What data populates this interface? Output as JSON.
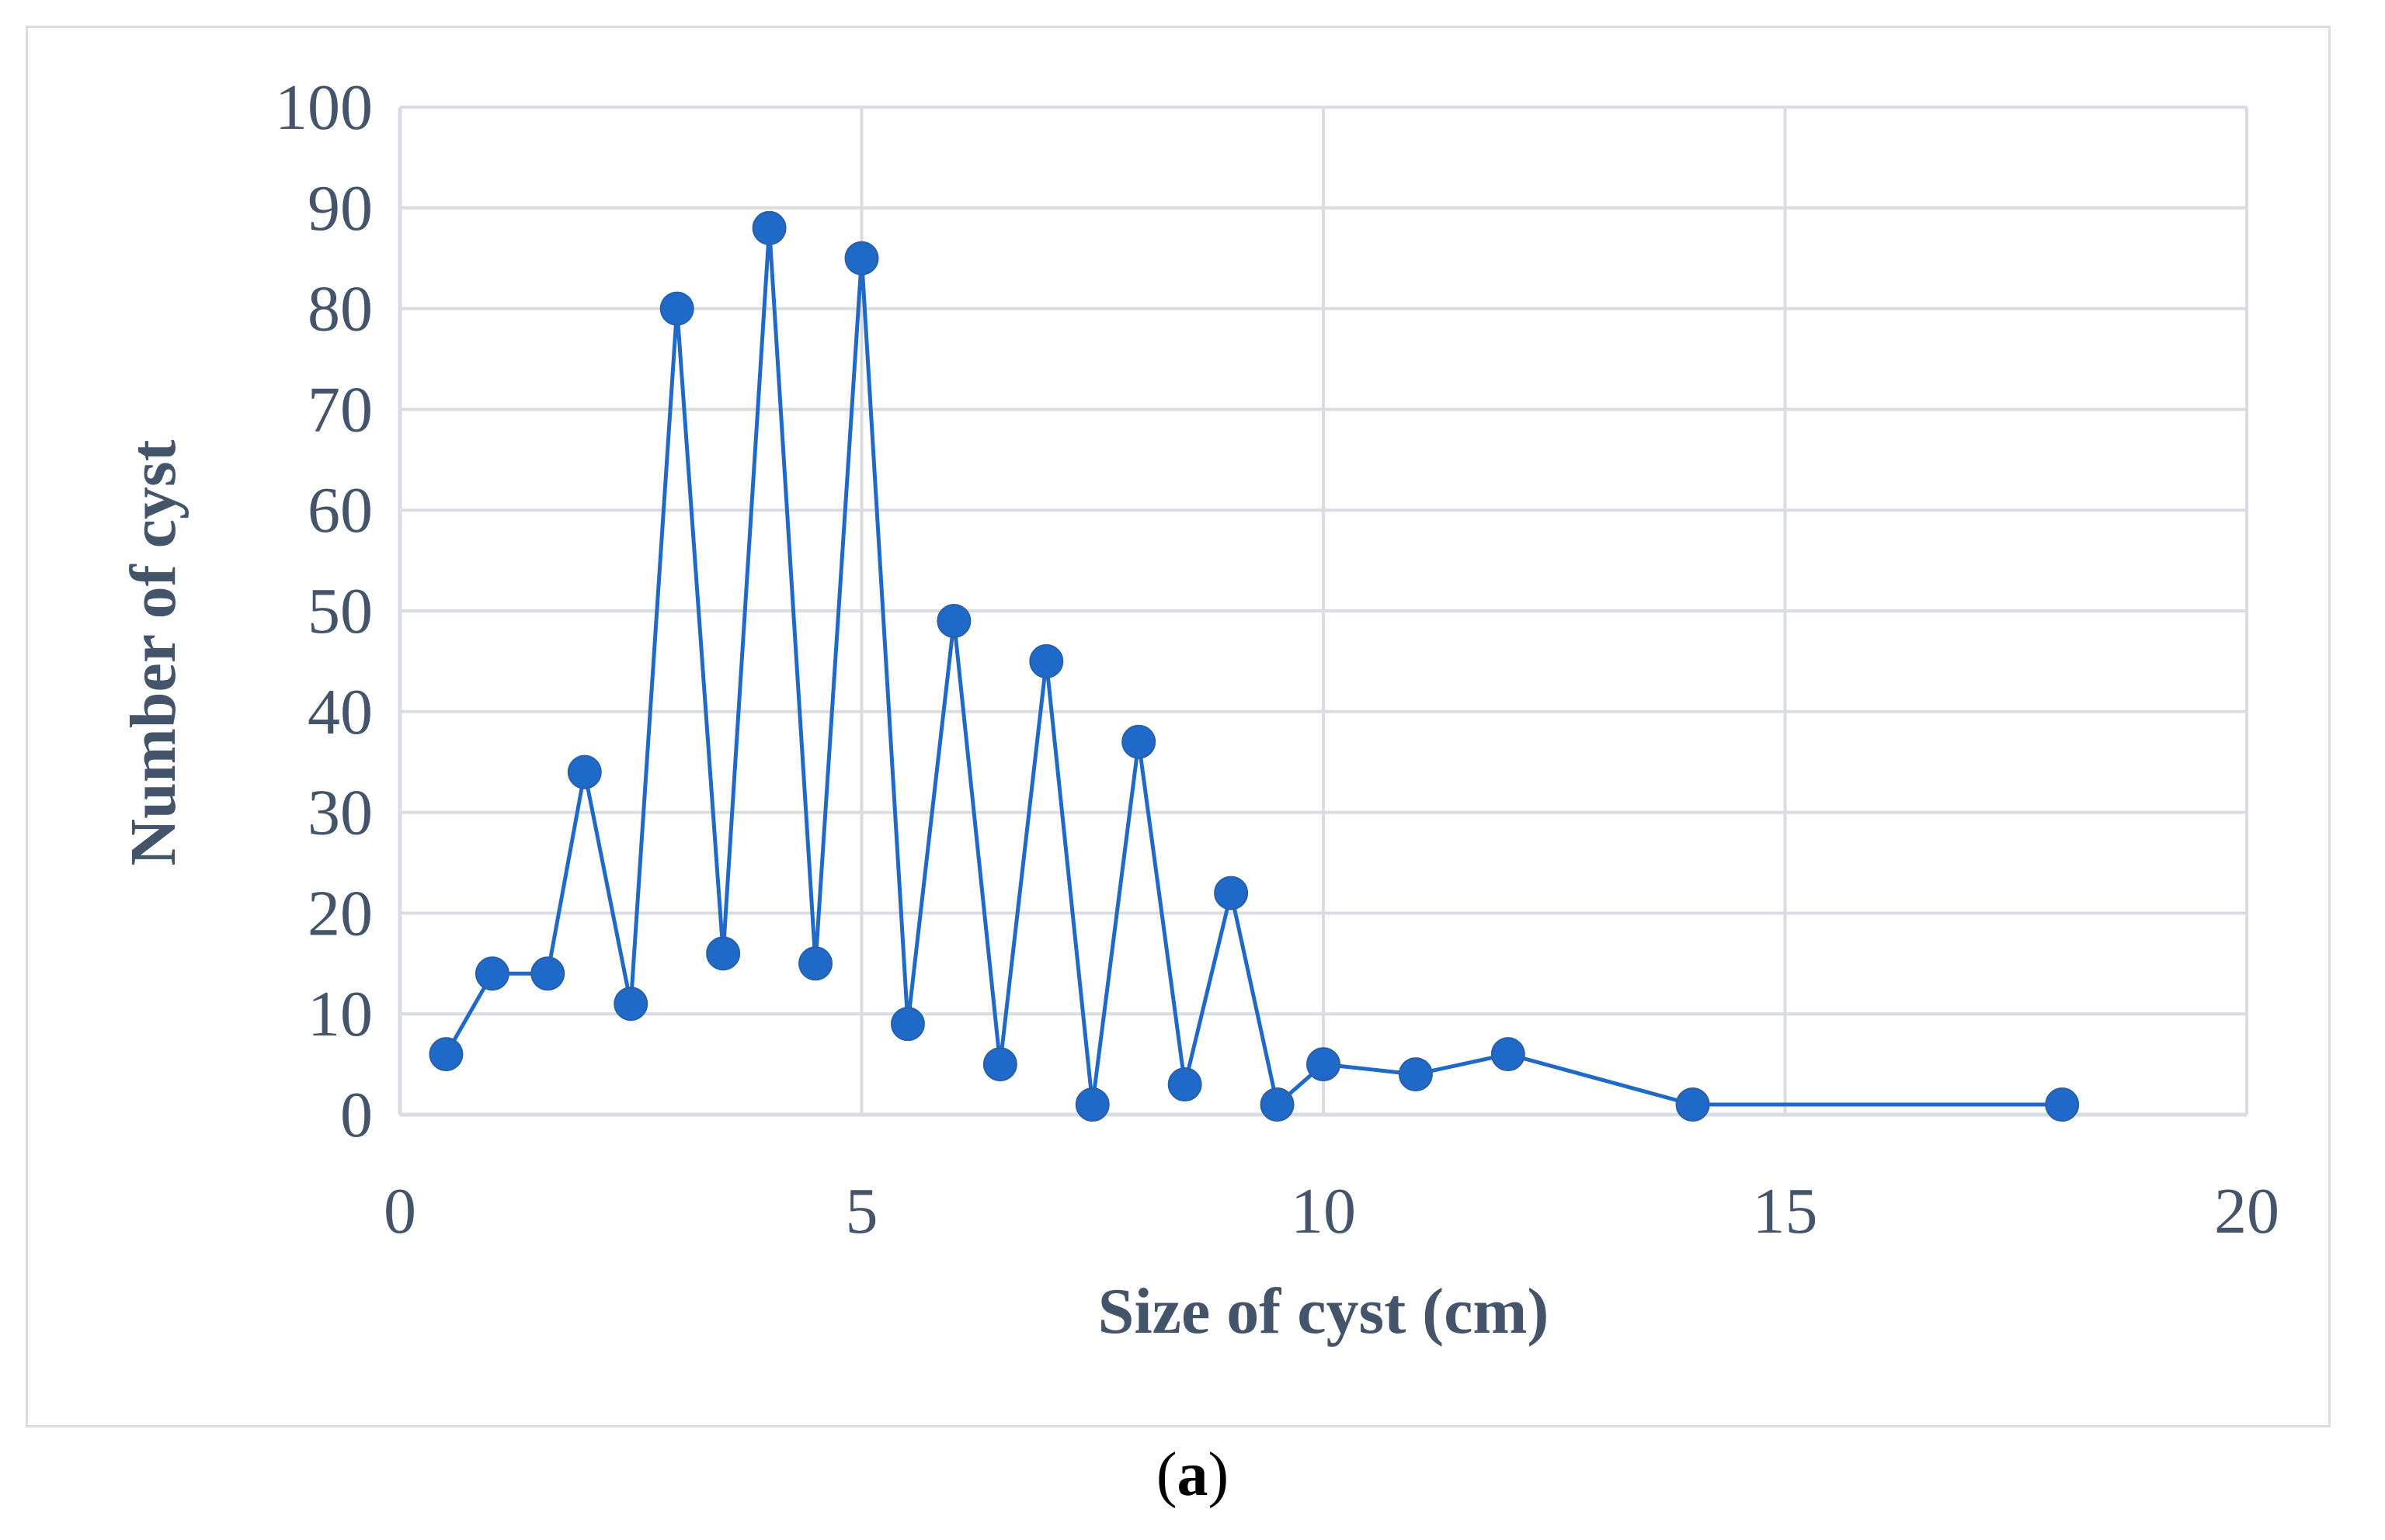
{
  "chart_data": {
    "type": "line",
    "xlabel": "Size of cyst (cm)",
    "ylabel": "Number of cyst",
    "xlim": [
      0,
      20
    ],
    "ylim": [
      0,
      100
    ],
    "x_ticks": [
      0,
      5,
      10,
      15,
      20
    ],
    "y_ticks": [
      0,
      10,
      20,
      30,
      40,
      50,
      60,
      70,
      80,
      90,
      100
    ],
    "x_tick_labels": [
      "0",
      "5",
      "10",
      "15",
      "20"
    ],
    "y_tick_labels": [
      "0",
      "10",
      "20",
      "30",
      "40",
      "50",
      "60",
      "70",
      "80",
      "90",
      "100"
    ],
    "grid": true,
    "markers": true,
    "series": [
      {
        "color": "#1f6ac8",
        "points": [
          [
            0.5,
            6
          ],
          [
            1,
            14
          ],
          [
            1.6,
            14
          ],
          [
            2,
            34
          ],
          [
            2.5,
            11
          ],
          [
            3,
            80
          ],
          [
            3.5,
            16
          ],
          [
            4,
            88
          ],
          [
            4.5,
            15
          ],
          [
            5,
            85
          ],
          [
            5.5,
            9
          ],
          [
            6,
            49
          ],
          [
            6.5,
            5
          ],
          [
            7,
            45
          ],
          [
            7.5,
            1
          ],
          [
            8,
            37
          ],
          [
            8.5,
            3
          ],
          [
            9,
            22
          ],
          [
            9.5,
            1
          ],
          [
            10,
            5
          ],
          [
            11,
            4
          ],
          [
            12,
            6
          ],
          [
            14,
            1
          ],
          [
            18,
            1
          ]
        ]
      }
    ]
  },
  "panel_label": {
    "open": "(",
    "letter": "a",
    "close": ")"
  },
  "colors": {
    "line": "#1f6ac8",
    "gridline": "#d9dde3",
    "text": "#44546a"
  }
}
